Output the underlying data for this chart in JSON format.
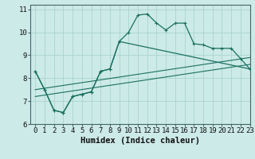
{
  "title": "",
  "xlabel": "Humidex (Indice chaleur)",
  "xlim": [
    -0.5,
    23
  ],
  "ylim": [
    6,
    11.2
  ],
  "background_color": "#cceae8",
  "grid_color": "#aad4d0",
  "line_color": "#1a7060",
  "line1_x": [
    0,
    1,
    2,
    3,
    4,
    5,
    6,
    7,
    8,
    9,
    10,
    11,
    12,
    13,
    14,
    15,
    16,
    17,
    18,
    19,
    20,
    21,
    22,
    23
  ],
  "line1_y": [
    8.3,
    7.5,
    6.6,
    6.5,
    7.2,
    7.3,
    7.4,
    8.3,
    8.4,
    9.6,
    10.0,
    10.75,
    10.8,
    10.4,
    10.1,
    10.4,
    10.4,
    9.5,
    9.45,
    9.3,
    9.3,
    9.3,
    8.85,
    8.4
  ],
  "line2_x": [
    0,
    1,
    2,
    3,
    4,
    5,
    6,
    7,
    8,
    9,
    23
  ],
  "line2_y": [
    8.3,
    7.5,
    6.6,
    6.5,
    7.2,
    7.3,
    7.4,
    8.3,
    8.4,
    9.6,
    8.4
  ],
  "line3_x": [
    0,
    23
  ],
  "line3_y": [
    7.2,
    8.6
  ],
  "line4_x": [
    0,
    23
  ],
  "line4_y": [
    7.5,
    8.9
  ],
  "xticks": [
    0,
    1,
    2,
    3,
    4,
    5,
    6,
    7,
    8,
    9,
    10,
    11,
    12,
    13,
    14,
    15,
    16,
    17,
    18,
    19,
    20,
    21,
    22,
    23
  ],
  "yticks": [
    6,
    7,
    8,
    9,
    10,
    11
  ],
  "tick_fontsize": 6.5,
  "xlabel_fontsize": 7.5
}
